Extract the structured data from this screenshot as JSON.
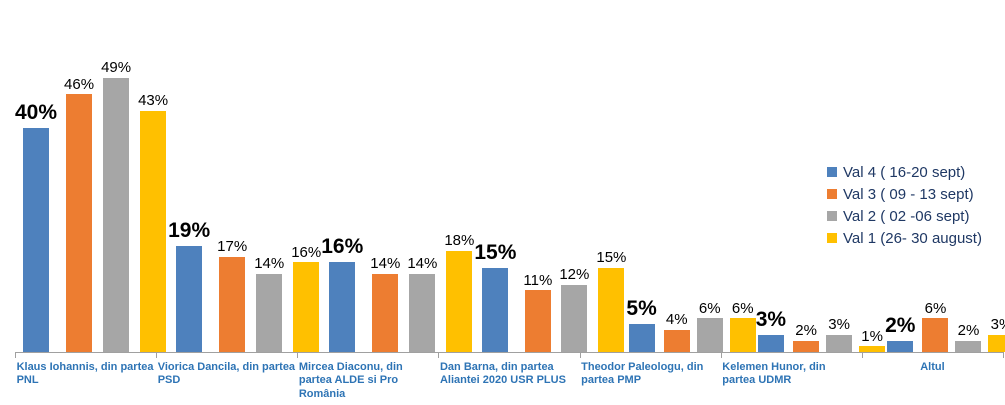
{
  "chart_data": {
    "type": "bar",
    "title": "",
    "xlabel": "",
    "ylabel": "",
    "grid": false,
    "legend_position": "right",
    "value_suffix": "%",
    "ylim": [
      0,
      55
    ],
    "categories": [
      "Klaus Iohannis, din partea PNL",
      "Viorica Dancila, din partea PSD",
      "Mircea Diaconu, din partea ALDE si Pro România",
      "Dan Barna, din partea Aliantei 2020 USR PLUS",
      "Theodor Paleologu, din partea PMP",
      "Kelemen Hunor, din partea UDMR",
      "Altul"
    ],
    "series": [
      {
        "name": "Val 4 ( 16-20 sept)",
        "color": "#4E81BD",
        "values": [
          40,
          19,
          16,
          15,
          5,
          3,
          2
        ]
      },
      {
        "name": "Val 3 ( 09 - 13 sept)",
        "color": "#ED7D31",
        "values": [
          46,
          17,
          14,
          11,
          4,
          2,
          6
        ]
      },
      {
        "name": "Val 2 ( 02 -06 sept)",
        "color": "#A6A6A6",
        "values": [
          49,
          14,
          14,
          12,
          6,
          3,
          2
        ]
      },
      {
        "name": "Val 1 (26- 30 august)",
        "color": "#FFC000",
        "values": [
          43,
          16,
          18,
          15,
          6,
          1,
          3
        ]
      }
    ]
  },
  "style": {
    "axis_color": "#A0A0A0",
    "category_label_color": "#2E74B5",
    "legend_text_color": "#1F3864",
    "value_label_color": "#000000"
  }
}
